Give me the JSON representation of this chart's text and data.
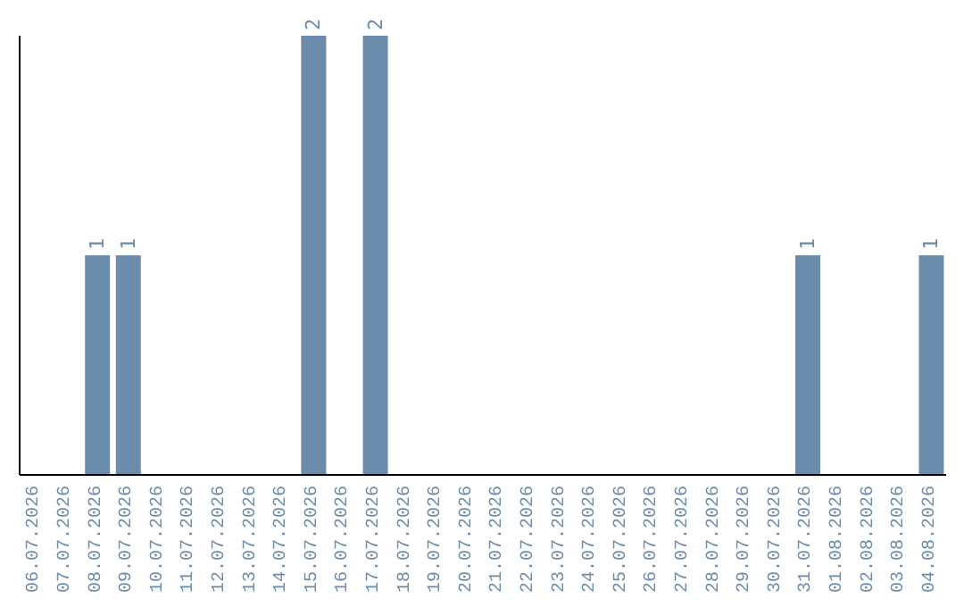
{
  "chart_data": {
    "type": "bar",
    "categories": [
      "06.07.2026",
      "07.07.2026",
      "08.07.2026",
      "09.07.2026",
      "10.07.2026",
      "11.07.2026",
      "12.07.2026",
      "13.07.2026",
      "14.07.2026",
      "15.07.2026",
      "16.07.2026",
      "17.07.2026",
      "18.07.2026",
      "19.07.2026",
      "20.07.2026",
      "21.07.2026",
      "22.07.2026",
      "23.07.2026",
      "24.07.2026",
      "25.07.2026",
      "26.07.2026",
      "27.07.2026",
      "28.07.2026",
      "29.07.2026",
      "30.07.2026",
      "31.07.2026",
      "01.08.2026",
      "02.08.2026",
      "03.08.2026",
      "04.08.2026"
    ],
    "values": [
      0,
      0,
      1,
      1,
      0,
      0,
      0,
      0,
      0,
      2,
      0,
      2,
      0,
      0,
      0,
      0,
      0,
      0,
      0,
      0,
      0,
      0,
      0,
      0,
      0,
      1,
      0,
      0,
      0,
      1
    ],
    "value_labels": [
      null,
      null,
      "1",
      "1",
      null,
      null,
      null,
      null,
      null,
      "2",
      null,
      "2",
      null,
      null,
      null,
      null,
      null,
      null,
      null,
      null,
      null,
      null,
      null,
      null,
      null,
      "1",
      null,
      null,
      null,
      "1"
    ],
    "color": "#6b8cab"
  }
}
